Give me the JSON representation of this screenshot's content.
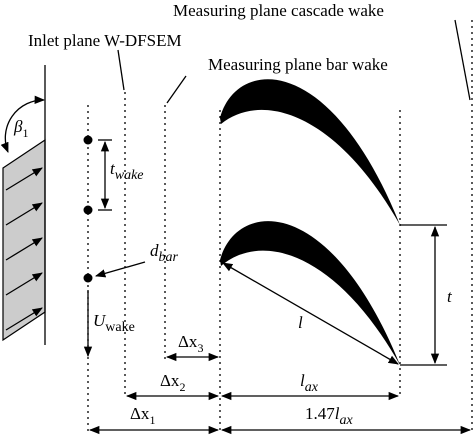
{
  "labels": {
    "cascade_plane": "Measuring plane cascade wake",
    "inlet_plane": "Inlet plane W-DFSEM",
    "bar_plane": "Measuring plane bar wake"
  },
  "symbols": {
    "beta1": {
      "base": "β",
      "sub": "1"
    },
    "t_wake": {
      "base": "t",
      "sub": "wake"
    },
    "d_bar": {
      "base": "d",
      "sub": "bar"
    },
    "u_wake": {
      "base": "U",
      "sub": "wake"
    },
    "dx3": {
      "base": "Δx",
      "sub": "3"
    },
    "dx2": {
      "base": "Δx",
      "sub": "2"
    },
    "dx1": {
      "base": "Δx",
      "sub": "1"
    },
    "l_ax": {
      "base": "l",
      "sub": "ax"
    },
    "l147": {
      "prefix": "1.47",
      "base": "l",
      "sub": "ax"
    },
    "l": "l",
    "t": "t"
  }
}
